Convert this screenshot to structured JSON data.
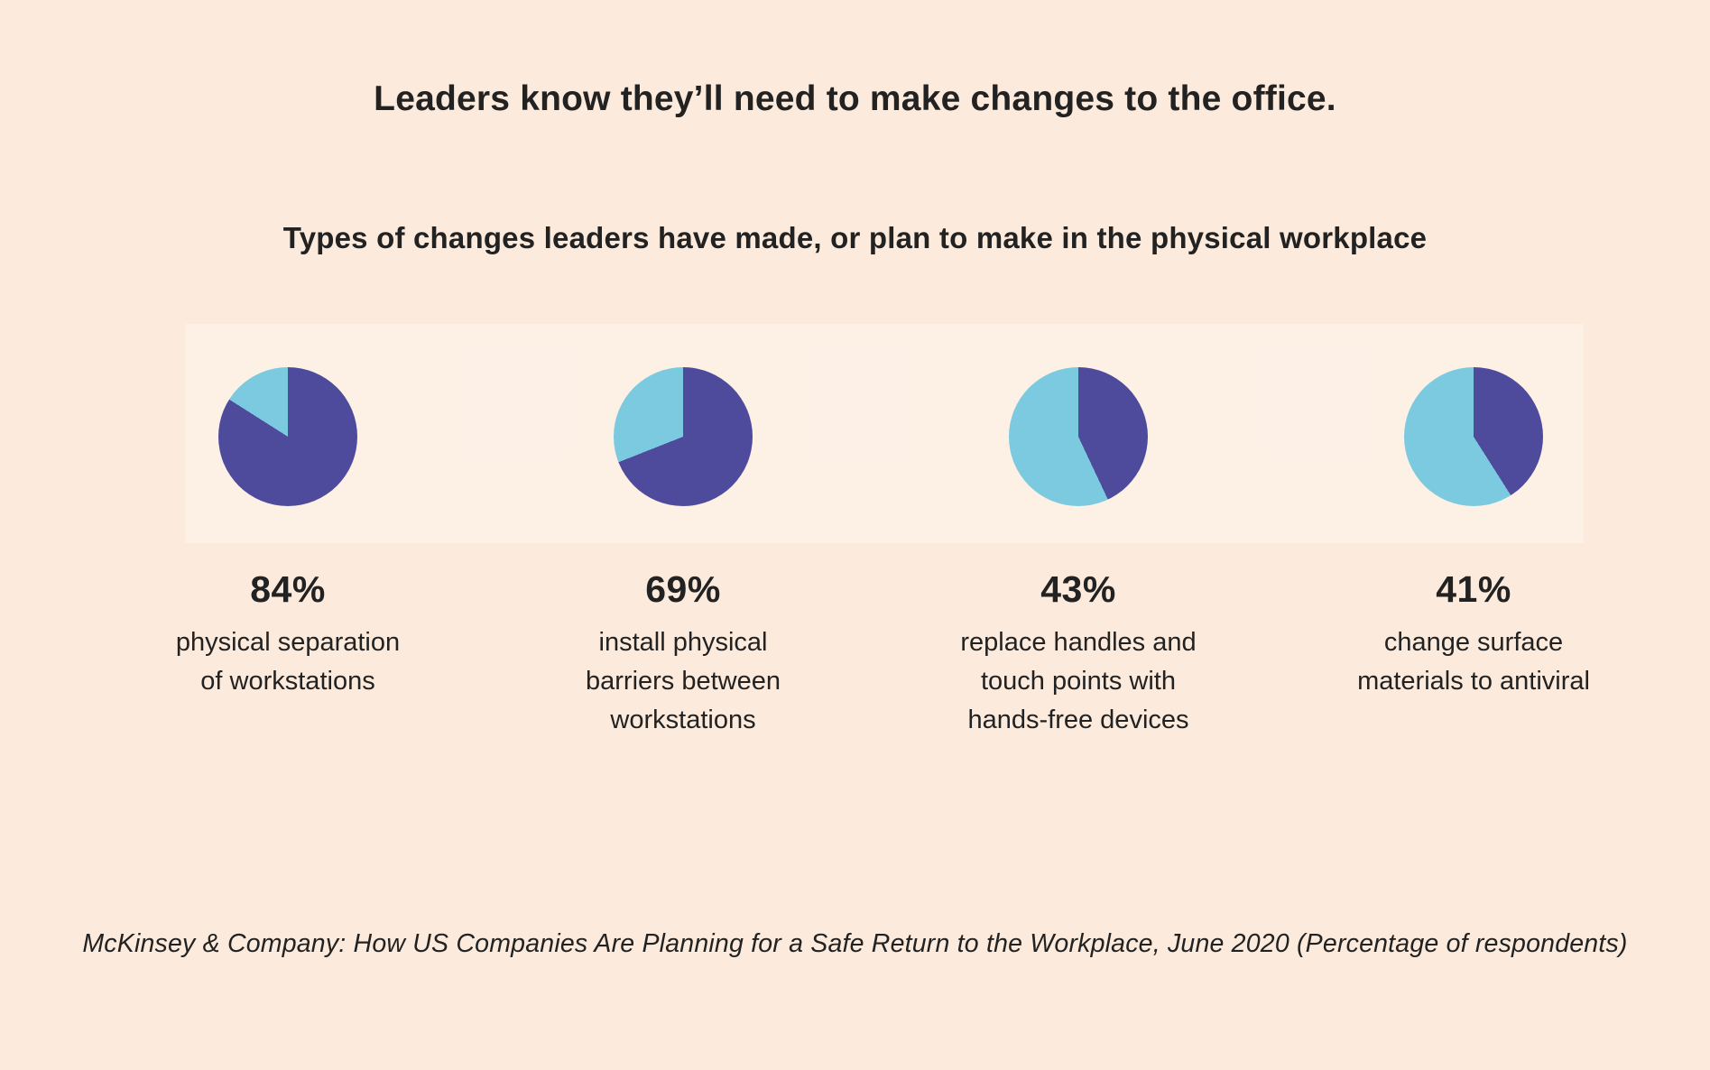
{
  "page": {
    "title": "Leaders know they’ll need to make changes to the office.",
    "subtitle": "Types of changes leaders have made, or plan to make in the physical workplace",
    "source": "McKinsey & Company: How US Companies Are Planning for a Safe Return to the Workplace, June 2020 (Percentage of respondents)"
  },
  "colors": {
    "background": "#fcebdc",
    "band": "#fdf1e6",
    "value_slice": "#4e4b9d",
    "remainder_slice": "#7bcadf",
    "text": "#232222"
  },
  "chart_data": {
    "type": "pie",
    "title": "Types of changes leaders have made, or plan to make in the physical workplace",
    "unit": "percent of respondents",
    "slice_convention": "value slice (dark purple) starts at 12 o'clock and sweeps clockwise; remainder slice is light blue",
    "legend_position": "none",
    "charts": [
      {
        "value": 84,
        "remainder": 16,
        "label_pct": "84%",
        "label_lines": [
          "physical separation",
          "of workstations"
        ]
      },
      {
        "value": 69,
        "remainder": 31,
        "label_pct": "69%",
        "label_lines": [
          "install physical",
          "barriers between",
          "workstations"
        ]
      },
      {
        "value": 43,
        "remainder": 57,
        "label_pct": "43%",
        "label_lines": [
          "replace handles and",
          "touch points with",
          "hands-free devices"
        ]
      },
      {
        "value": 41,
        "remainder": 59,
        "label_pct": "41%",
        "label_lines": [
          "change surface",
          "materials to antiviral"
        ]
      }
    ]
  }
}
